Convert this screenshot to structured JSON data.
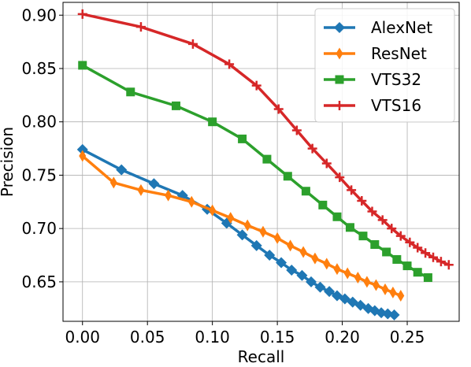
{
  "chart_data": {
    "type": "line",
    "title": "",
    "xlabel": "Recall",
    "ylabel": "Precision",
    "xlim": [
      -0.015,
      0.29
    ],
    "ylim": [
      0.613,
      0.912
    ],
    "xticks": [
      0.0,
      0.05,
      0.1,
      0.15,
      0.2,
      0.25
    ],
    "xtick_labels": [
      "0.00",
      "0.05",
      "0.10",
      "0.15",
      "0.20",
      "0.25"
    ],
    "yticks": [
      0.65,
      0.7,
      0.75,
      0.8,
      0.85,
      0.9
    ],
    "ytick_labels": [
      "0.65",
      "0.70",
      "0.75",
      "0.80",
      "0.85",
      "0.90"
    ],
    "grid": true,
    "legend_position": "top-right",
    "series": [
      {
        "name": "AlexNet",
        "color": "#1f77b4",
        "marker": "diamond",
        "x": [
          0.0,
          0.03,
          0.055,
          0.077,
          0.096,
          0.111,
          0.123,
          0.134,
          0.144,
          0.153,
          0.161,
          0.169,
          0.176,
          0.183,
          0.19,
          0.196,
          0.202,
          0.208,
          0.214,
          0.22,
          0.225,
          0.23,
          0.235,
          0.24
        ],
        "y": [
          0.774,
          0.755,
          0.742,
          0.731,
          0.718,
          0.705,
          0.694,
          0.684,
          0.675,
          0.668,
          0.661,
          0.656,
          0.65,
          0.645,
          0.641,
          0.637,
          0.634,
          0.631,
          0.628,
          0.625,
          0.623,
          0.621,
          0.62,
          0.619
        ]
      },
      {
        "name": "ResNet",
        "color": "#ff7f0e",
        "marker": "thin_diamond",
        "x": [
          0.0,
          0.024,
          0.045,
          0.066,
          0.084,
          0.1,
          0.114,
          0.127,
          0.139,
          0.15,
          0.16,
          0.17,
          0.179,
          0.188,
          0.196,
          0.204,
          0.212,
          0.219,
          0.226,
          0.233,
          0.239,
          0.245
        ],
        "y": [
          0.768,
          0.743,
          0.736,
          0.731,
          0.725,
          0.717,
          0.71,
          0.703,
          0.697,
          0.691,
          0.684,
          0.678,
          0.672,
          0.667,
          0.662,
          0.658,
          0.654,
          0.65,
          0.647,
          0.643,
          0.64,
          0.637
        ]
      },
      {
        "name": "VTS32",
        "color": "#2ca02c",
        "marker": "square",
        "x": [
          0.0,
          0.037,
          0.072,
          0.1,
          0.123,
          0.142,
          0.158,
          0.172,
          0.185,
          0.196,
          0.206,
          0.216,
          0.225,
          0.234,
          0.242,
          0.25,
          0.258,
          0.266
        ],
        "y": [
          0.853,
          0.828,
          0.815,
          0.8,
          0.784,
          0.765,
          0.749,
          0.735,
          0.722,
          0.711,
          0.701,
          0.693,
          0.685,
          0.678,
          0.671,
          0.665,
          0.659,
          0.654
        ]
      },
      {
        "name": "VTS16",
        "color": "#d62728",
        "marker": "plus",
        "x": [
          0.0,
          0.045,
          0.085,
          0.113,
          0.134,
          0.151,
          0.165,
          0.177,
          0.188,
          0.198,
          0.207,
          0.215,
          0.223,
          0.231,
          0.238,
          0.245,
          0.252,
          0.258,
          0.264,
          0.27,
          0.276,
          0.282
        ],
        "y": [
          0.901,
          0.889,
          0.873,
          0.854,
          0.834,
          0.812,
          0.792,
          0.775,
          0.761,
          0.748,
          0.736,
          0.726,
          0.716,
          0.708,
          0.7,
          0.693,
          0.687,
          0.682,
          0.677,
          0.673,
          0.669,
          0.666
        ]
      }
    ]
  }
}
